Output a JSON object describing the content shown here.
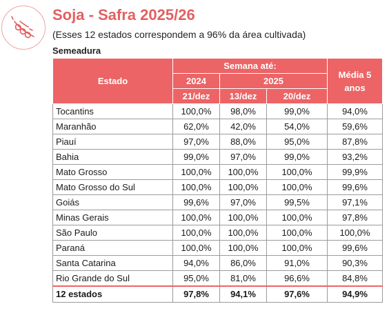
{
  "header": {
    "title": "Soja - Safra 2025/26",
    "subtitle": "(Esses 12 estados correspondem a 96% da área cultivada)",
    "section": "Semeadura"
  },
  "table": {
    "col_estado": "Estado",
    "col_semana": "Semana até:",
    "col_media": "Média  5 anos",
    "year_2024": "2024",
    "year_2025": "2025",
    "dates": [
      "21/dez",
      "13/dez",
      "20/dez"
    ],
    "rows": [
      {
        "estado": "Tocantins",
        "v2024": "100,0%",
        "v13": "98,0%",
        "v20": "99,0%",
        "media": "94,0%"
      },
      {
        "estado": "Maranhão",
        "v2024": "62,0%",
        "v13": "42,0%",
        "v20": "54,0%",
        "media": "59,6%"
      },
      {
        "estado": "Piauí",
        "v2024": "97,0%",
        "v13": "88,0%",
        "v20": "95,0%",
        "media": "87,8%"
      },
      {
        "estado": "Bahia",
        "v2024": "99,0%",
        "v13": "97,0%",
        "v20": "99,0%",
        "media": "93,2%"
      },
      {
        "estado": "Mato Grosso",
        "v2024": "100,0%",
        "v13": "100,0%",
        "v20": "100,0%",
        "media": "99,9%"
      },
      {
        "estado": "Mato Grosso do Sul",
        "v2024": "100,0%",
        "v13": "100,0%",
        "v20": "100,0%",
        "media": "99,6%"
      },
      {
        "estado": "Goiás",
        "v2024": "99,6%",
        "v13": "97,0%",
        "v20": "99,5%",
        "media": "97,1%"
      },
      {
        "estado": "Minas Gerais",
        "v2024": "100,0%",
        "v13": "100,0%",
        "v20": "100,0%",
        "media": "97,8%"
      },
      {
        "estado": "São Paulo",
        "v2024": "100,0%",
        "v13": "100,0%",
        "v20": "100,0%",
        "media": "100,0%"
      },
      {
        "estado": "Paraná",
        "v2024": "100,0%",
        "v13": "100,0%",
        "v20": "100,0%",
        "media": "99,6%"
      },
      {
        "estado": "Santa Catarina",
        "v2024": "94,0%",
        "v13": "86,0%",
        "v20": "91,0%",
        "media": "90,3%"
      },
      {
        "estado": "Rio Grande do Sul",
        "v2024": "95,0%",
        "v13": "81,0%",
        "v20": "96,6%",
        "media": "84,8%"
      }
    ],
    "total": {
      "estado": "12 estados",
      "v2024": "97,8%",
      "v13": "94,1%",
      "v20": "97,6%",
      "media": "94,9%"
    }
  },
  "colors": {
    "accent": "#ec6466",
    "title": "#e35f61"
  },
  "icons": {
    "logo": "soybean-pod-icon"
  }
}
